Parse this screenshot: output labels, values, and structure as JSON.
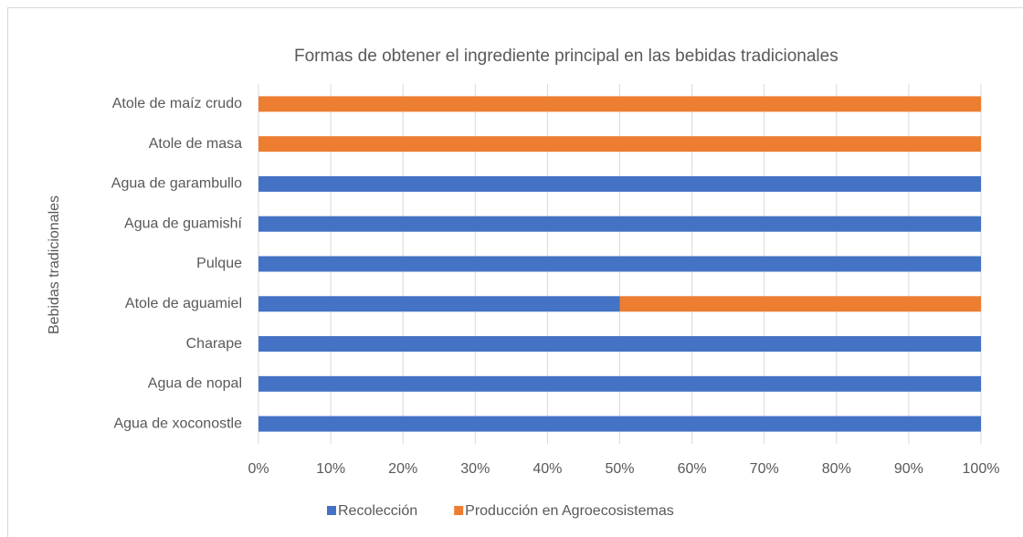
{
  "chart_data": {
    "type": "bar",
    "orientation": "horizontal",
    "stacked": true,
    "title": "Formas de obtener el ingrediente principal en las bebidas tradicionales",
    "y_label": "Bebidas tradicionales",
    "categories": [
      "Atole de maíz crudo",
      "Atole de masa",
      "Agua de garambullo",
      "Agua de guamishí",
      "Pulque",
      "Atole de aguamiel",
      "Charape",
      "Agua de nopal",
      "Agua de xoconostle"
    ],
    "series": [
      {
        "name": "Recolección",
        "color": "#4472c4",
        "values": [
          0,
          0,
          100,
          100,
          100,
          50,
          100,
          100,
          100
        ]
      },
      {
        "name": "Producción en Agroecosistemas",
        "color": "#ed7d31",
        "values": [
          100,
          100,
          0,
          0,
          0,
          50,
          0,
          0,
          0
        ]
      }
    ],
    "xlim": [
      0,
      100
    ],
    "xticks": [
      {
        "value": 0,
        "label": "0%"
      },
      {
        "value": 10,
        "label": "10%"
      },
      {
        "value": 20,
        "label": "20%"
      },
      {
        "value": 30,
        "label": "30%"
      },
      {
        "value": 40,
        "label": "40%"
      },
      {
        "value": 50,
        "label": "50%"
      },
      {
        "value": 60,
        "label": "60%"
      },
      {
        "value": 70,
        "label": "70%"
      },
      {
        "value": 80,
        "label": "80%"
      },
      {
        "value": 90,
        "label": "90%"
      },
      {
        "value": 100,
        "label": "100%"
      }
    ],
    "grid": true,
    "legend": "bottom"
  }
}
